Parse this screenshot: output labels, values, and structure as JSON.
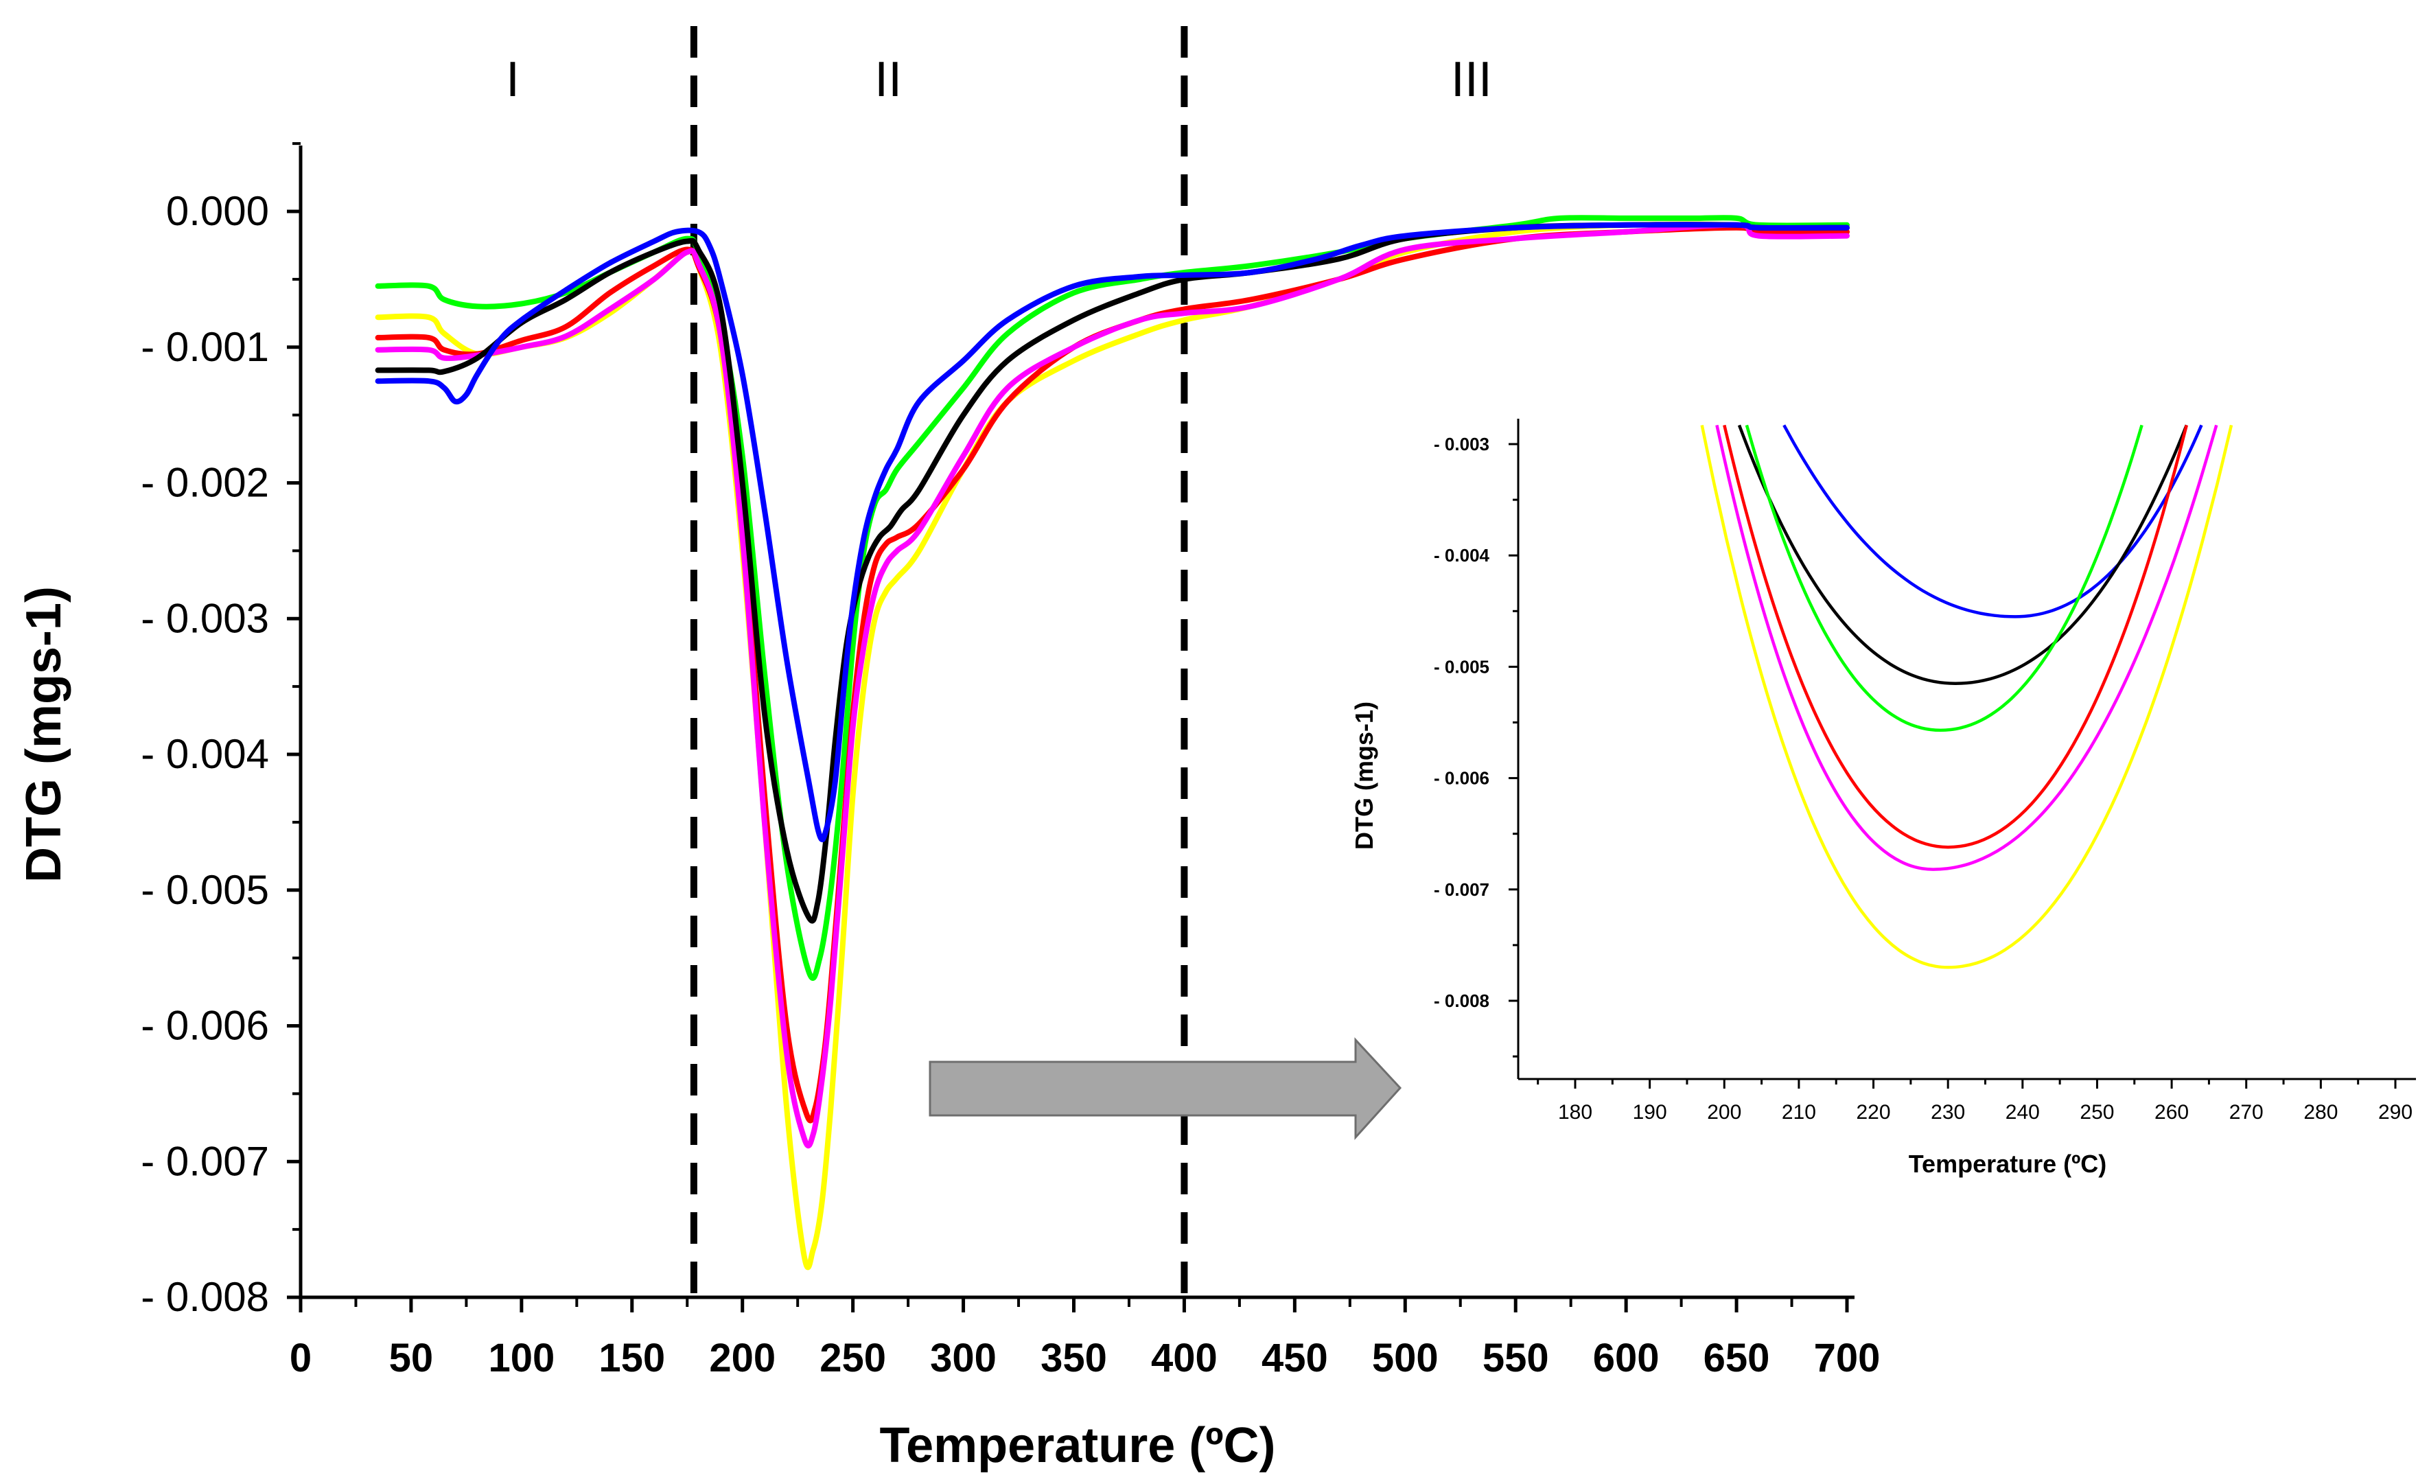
{
  "chart_data": [
    {
      "type": "line",
      "title": "",
      "xlabel": "Temperature (ºC)",
      "ylabel": "DTG (mgs-1)",
      "xlim": [
        0,
        700
      ],
      "ylim": [
        -0.008,
        0.0005
      ],
      "x_ticks": [
        0,
        50,
        100,
        150,
        200,
        250,
        300,
        350,
        400,
        450,
        500,
        550,
        600,
        650,
        700
      ],
      "x_tick_labels": [
        "0",
        "50",
        "100",
        "150",
        "200",
        "250",
        "300",
        "350",
        "400",
        "450",
        "500",
        "550",
        "600",
        "650",
        "700"
      ],
      "y_ticks": [
        0,
        -0.001,
        -0.002,
        -0.003,
        -0.004,
        -0.005,
        -0.006,
        -0.007,
        -0.008
      ],
      "y_tick_labels": [
        "0.000",
        "- 0.001",
        "- 0.002",
        "- 0.003",
        "- 0.004",
        "- 0.005",
        "- 0.006",
        "- 0.007",
        "- 0.008"
      ],
      "vertical_dividers": [
        178,
        400
      ],
      "regions": [
        {
          "label": "I",
          "x": 96
        },
        {
          "label": "II",
          "x": 266
        },
        {
          "label": "III",
          "x": 530
        }
      ],
      "series": [
        {
          "name": "green",
          "color": "#00ff00",
          "x": [
            35,
            58,
            65,
            80,
            100,
            120,
            140,
            160,
            175,
            180,
            190,
            200,
            210,
            220,
            230,
            235,
            240,
            245,
            250,
            255,
            260,
            265,
            270,
            280,
            300,
            320,
            350,
            380,
            400,
            430,
            470,
            500,
            550,
            570,
            600,
            630,
            650,
            660,
            700
          ],
          "y": [
            -0.00055,
            -0.00055,
            -0.00065,
            -0.0007,
            -0.00068,
            -0.0006,
            -0.00045,
            -0.0003,
            -0.0002,
            -0.0003,
            -0.0008,
            -0.0018,
            -0.0034,
            -0.0048,
            -0.0056,
            -0.0055,
            -0.005,
            -0.0042,
            -0.0032,
            -0.0025,
            -0.00215,
            -0.00205,
            -0.0019,
            -0.0017,
            -0.0013,
            -0.0009,
            -0.0006,
            -0.0005,
            -0.00045,
            -0.0004,
            -0.0003,
            -0.0002,
            -0.0001,
            -5e-05,
            -5e-05,
            -5e-05,
            -5e-05,
            -0.0001,
            -0.0001
          ]
        },
        {
          "name": "yellow",
          "color": "#ffff00",
          "x": [
            35,
            58,
            65,
            80,
            100,
            120,
            140,
            160,
            175,
            180,
            190,
            200,
            210,
            220,
            228,
            232,
            236,
            240,
            245,
            250,
            255,
            260,
            265,
            270,
            280,
            300,
            320,
            350,
            380,
            400,
            430,
            470,
            500,
            550,
            600,
            650,
            660,
            700
          ],
          "y": [
            -0.00078,
            -0.00078,
            -0.0009,
            -0.00105,
            -0.001,
            -0.00093,
            -0.00075,
            -0.0005,
            -0.0003,
            -0.0004,
            -0.001,
            -0.0025,
            -0.0045,
            -0.0066,
            -0.0077,
            -0.00765,
            -0.0073,
            -0.0066,
            -0.0055,
            -0.0043,
            -0.0035,
            -0.003,
            -0.0028,
            -0.0027,
            -0.0025,
            -0.0019,
            -0.0014,
            -0.0011,
            -0.0009,
            -0.0008,
            -0.0007,
            -0.0005,
            -0.0003,
            -0.00015,
            -0.0001,
            -0.0001,
            -0.00015,
            -0.00015
          ]
        },
        {
          "name": "red",
          "color": "#ff0000",
          "x": [
            35,
            58,
            65,
            80,
            100,
            120,
            140,
            160,
            175,
            180,
            190,
            200,
            210,
            220,
            229,
            233,
            237,
            240,
            245,
            250,
            255,
            260,
            265,
            270,
            280,
            300,
            320,
            350,
            380,
            400,
            430,
            470,
            500,
            550,
            600,
            650,
            660,
            700
          ],
          "y": [
            -0.00093,
            -0.00093,
            -0.00102,
            -0.00105,
            -0.00095,
            -0.00085,
            -0.0006,
            -0.0004,
            -0.00028,
            -0.0004,
            -0.0009,
            -0.0023,
            -0.0043,
            -0.006,
            -0.00665,
            -0.0066,
            -0.0062,
            -0.0057,
            -0.0047,
            -0.0037,
            -0.003,
            -0.0026,
            -0.00245,
            -0.0024,
            -0.0023,
            -0.0019,
            -0.0014,
            -0.001,
            -0.0008,
            -0.00072,
            -0.00065,
            -0.0005,
            -0.00035,
            -0.0002,
            -0.00015,
            -0.00012,
            -0.00015,
            -0.00015
          ]
        },
        {
          "name": "magenta",
          "color": "#ff00ff",
          "x": [
            35,
            58,
            65,
            80,
            100,
            120,
            140,
            160,
            175,
            180,
            190,
            200,
            210,
            220,
            228,
            232,
            236,
            240,
            245,
            250,
            255,
            260,
            265,
            270,
            280,
            300,
            320,
            350,
            380,
            400,
            430,
            470,
            500,
            550,
            600,
            650,
            660,
            700
          ],
          "y": [
            -0.00102,
            -0.00102,
            -0.00108,
            -0.00106,
            -0.001,
            -0.00092,
            -0.00072,
            -0.0005,
            -0.0003,
            -0.00038,
            -0.0009,
            -0.0024,
            -0.0045,
            -0.0062,
            -0.00683,
            -0.0068,
            -0.0064,
            -0.0058,
            -0.0048,
            -0.0038,
            -0.0032,
            -0.0028,
            -0.0026,
            -0.0025,
            -0.00235,
            -0.0018,
            -0.0013,
            -0.001,
            -0.0008,
            -0.00075,
            -0.0007,
            -0.0005,
            -0.00028,
            -0.0002,
            -0.00015,
            -0.0001,
            -0.00018,
            -0.00018
          ]
        },
        {
          "name": "black",
          "color": "#000000",
          "x": [
            35,
            58,
            65,
            80,
            100,
            120,
            140,
            160,
            175,
            180,
            190,
            200,
            210,
            220,
            230,
            234,
            238,
            242,
            247,
            252,
            257,
            262,
            267,
            272,
            280,
            300,
            320,
            350,
            380,
            400,
            430,
            470,
            500,
            550,
            600,
            650,
            660,
            700
          ],
          "y": [
            -0.00117,
            -0.00117,
            -0.00118,
            -0.00108,
            -0.00082,
            -0.00065,
            -0.00045,
            -0.0003,
            -0.00022,
            -0.00028,
            -0.0007,
            -0.002,
            -0.0037,
            -0.0047,
            -0.0052,
            -0.0051,
            -0.0046,
            -0.0039,
            -0.0032,
            -0.0028,
            -0.00255,
            -0.0024,
            -0.00232,
            -0.0022,
            -0.00205,
            -0.0015,
            -0.0011,
            -0.0008,
            -0.0006,
            -0.0005,
            -0.00045,
            -0.00035,
            -0.0002,
            -0.00012,
            -0.0001,
            -0.0001,
            -0.00012,
            -0.00012
          ]
        },
        {
          "name": "blue",
          "color": "#0000ff",
          "x": [
            35,
            58,
            65,
            70,
            75,
            80,
            90,
            100,
            120,
            140,
            160,
            170,
            180,
            185,
            190,
            200,
            210,
            220,
            230,
            235,
            238,
            242,
            246,
            250,
            255,
            260,
            265,
            270,
            280,
            300,
            320,
            350,
            380,
            400,
            430,
            460,
            480,
            500,
            550,
            600,
            650,
            660,
            700
          ],
          "y": [
            -0.00125,
            -0.00125,
            -0.0013,
            -0.0014,
            -0.00135,
            -0.0012,
            -0.00095,
            -0.0008,
            -0.00058,
            -0.00038,
            -0.00022,
            -0.00015,
            -0.00015,
            -0.00025,
            -0.0005,
            -0.0012,
            -0.0022,
            -0.0033,
            -0.0042,
            -0.0046,
            -0.00455,
            -0.0042,
            -0.0035,
            -0.0029,
            -0.0024,
            -0.0021,
            -0.0019,
            -0.00175,
            -0.0014,
            -0.0011,
            -0.0008,
            -0.00055,
            -0.00048,
            -0.00047,
            -0.00045,
            -0.00035,
            -0.00025,
            -0.00018,
            -0.00012,
            -0.0001,
            -0.0001,
            -0.00012,
            -0.00012
          ]
        }
      ]
    },
    {
      "type": "line",
      "title": "",
      "xlabel": "Temperature (ºC)",
      "ylabel": "DTG (mgs-1)",
      "xlim": [
        172,
        292
      ],
      "ylim": [
        -0.00865,
        -0.00283
      ],
      "x_ticks": [
        180,
        190,
        200,
        210,
        220,
        230,
        240,
        250,
        260,
        270,
        280,
        290
      ],
      "x_tick_labels": [
        "180",
        "190",
        "200",
        "210",
        "220",
        "230",
        "240",
        "250",
        "260",
        "270",
        "280",
        "290"
      ],
      "y_ticks": [
        -0.003,
        -0.004,
        -0.005,
        -0.006,
        -0.007,
        -0.008
      ],
      "y_tick_labels": [
        "- 0.003",
        "- 0.004",
        "- 0.005",
        "- 0.006",
        "- 0.007",
        "- 0.008"
      ],
      "series": [
        {
          "name": "blue",
          "color": "#0000ff",
          "min_x": 239,
          "min_y": -0.00455,
          "left_x": 208,
          "right_x": 264
        },
        {
          "name": "black",
          "color": "#000000",
          "min_x": 231,
          "min_y": -0.00515,
          "left_x": 202,
          "right_x": 262
        },
        {
          "name": "green",
          "color": "#00ff00",
          "min_x": 229,
          "min_y": -0.00557,
          "left_x": 203,
          "right_x": 256
        },
        {
          "name": "red",
          "color": "#ff0000",
          "min_x": 230,
          "min_y": -0.00662,
          "left_x": 200,
          "right_x": 262
        },
        {
          "name": "magenta",
          "color": "#ff00ff",
          "min_x": 228,
          "min_y": -0.00682,
          "left_x": 199,
          "right_x": 266
        },
        {
          "name": "yellow",
          "color": "#ffff00",
          "min_x": 230,
          "min_y": -0.0077,
          "left_x": 197,
          "right_x": 268
        }
      ]
    }
  ]
}
